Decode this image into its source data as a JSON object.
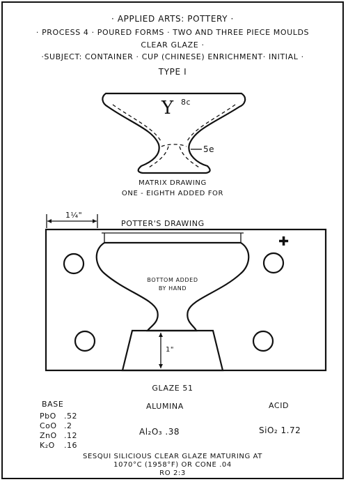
{
  "header": {
    "line1": "· Applied Arts: Pottery ·",
    "line2": "· Process 4 · Poured Forms · Two and Three Piece Moulds",
    "line3": "Clear Glaze ·",
    "line4": "·Subject: Container · Cup (Chinese) Enrichment· Initial ·",
    "type": "Type I"
  },
  "matrix": {
    "initial_letter": "Y",
    "label_8c": "8c",
    "label_5e": "5e",
    "caption1": "Matrix Drawing",
    "caption2": "One - Eighth Added For"
  },
  "potter": {
    "title": "Potter's Drawing",
    "dimension_top": "1¼\"",
    "dimension_side": "1\"",
    "note_line1": "Bottom Added",
    "note_line2": "By Hand",
    "cross_symbol": "✚"
  },
  "glaze": {
    "title": "Glaze 51",
    "base_header": "Base",
    "alumina_header": "Alumina",
    "acid_header": "Acid",
    "base_rows": [
      {
        "formula": "PbO",
        "value": ".52"
      },
      {
        "formula": "CoO",
        "value": ".2"
      },
      {
        "formula": "ZnO",
        "value": ".12"
      },
      {
        "formula": "K₂O",
        "value": ".16"
      }
    ],
    "alumina_value": "Al₂O₃ .38",
    "acid_value": "SiO₂ 1.72",
    "note1": "Sesqui Silicious Clear Glaze Maturing At",
    "note2": "1070°C (1958°F) or Cone .04",
    "ratio": "RO 2:3"
  }
}
